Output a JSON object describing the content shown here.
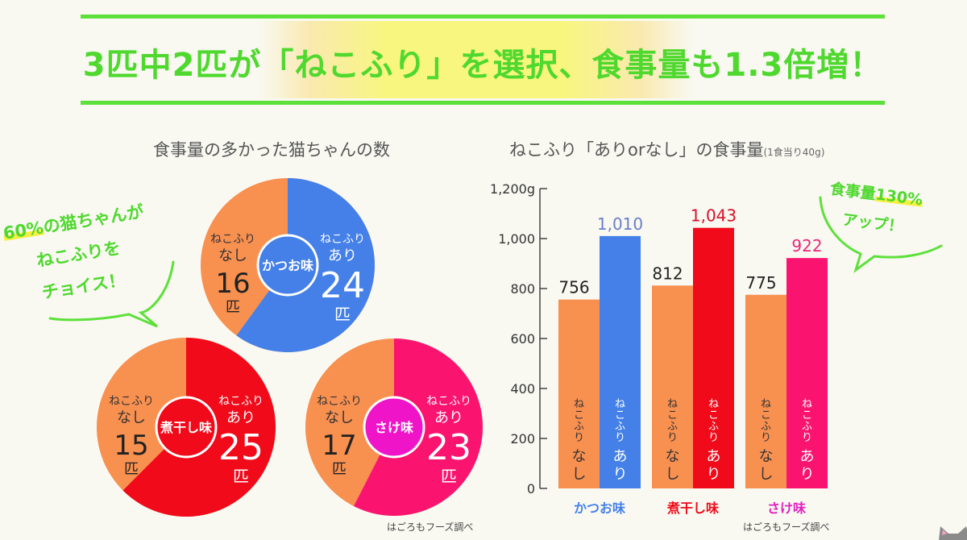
{
  "headline": {
    "text": "3匹中2匹が「ねこふり」を選択、食事量も1.3倍増！"
  },
  "pie_section": {
    "title": "食事量の多かった猫ちゃんの数",
    "source": "はごろもフーズ調べ",
    "callout": {
      "line1_highlight": "60%",
      "line1_rest": "の猫ちゃんが",
      "line2": "ねこふりを",
      "line3": "チョイス！"
    }
  },
  "bar_section": {
    "title": "ねこふり「ありorなし」の食事量",
    "title_note": "(1食当り40g)",
    "source": "はごろもフーズ調べ",
    "callout": {
      "line1_prefix": "食事量",
      "line1_highlight": "130%",
      "line2": "アップ！"
    }
  },
  "colors": {
    "accent_green": "#4fd82e",
    "without": "#f89050",
    "katsuo": "#4480e8",
    "niboshi": "#f00a1a",
    "sake": "#fa1470",
    "sake_center": "#f014c8"
  },
  "chart_data": [
    {
      "type": "pie",
      "title": "食事量の多かった猫ちゃんの数",
      "unit": "匹",
      "label_with": [
        "ねこふり",
        "あり"
      ],
      "label_without": [
        "ねこふり",
        "なし"
      ],
      "pies": [
        {
          "flavor": "かつお味",
          "with": 24,
          "without": 16,
          "color": "#4480e8",
          "center_color": "#4480e8"
        },
        {
          "flavor": "煮干し味",
          "with": 25,
          "without": 15,
          "color": "#f00a1a",
          "center_color": "#f00a1a"
        },
        {
          "flavor": "さけ味",
          "with": 23,
          "without": 17,
          "color": "#fa1470",
          "center_color": "#f014c8"
        }
      ]
    },
    {
      "type": "bar",
      "title": "ねこふり「ありorなし」の食事量",
      "subtitle": "(1食当り40g)",
      "categories": [
        "かつお味",
        "煮干し味",
        "さけ味"
      ],
      "category_colors": [
        "#4480e8",
        "#f00a1a",
        "#e020c0"
      ],
      "series": [
        {
          "name": "ねこふりなし",
          "bar_label": [
            "ねこふり",
            "なし"
          ],
          "values": [
            756,
            812,
            775
          ],
          "value_labels": [
            "756",
            "812",
            "775"
          ],
          "colors": [
            "#f89050",
            "#f89050",
            "#f89050"
          ]
        },
        {
          "name": "ねこふりあり",
          "bar_label": [
            "ねこふり",
            "あり"
          ],
          "values": [
            1010,
            1043,
            922
          ],
          "value_labels": [
            "1,010",
            "1,043",
            "922"
          ],
          "colors": [
            "#4480e8",
            "#f00a1a",
            "#fa1470"
          ],
          "label_colors": [
            "#6a7ec8",
            "#d8102a",
            "#e8287a"
          ]
        }
      ],
      "ylim": [
        0,
        1200
      ],
      "yticks": [
        0,
        200,
        400,
        600,
        800,
        1000,
        1200
      ],
      "ytick_labels": [
        "0",
        "200",
        "400",
        "600",
        "800",
        "1,000",
        "1,200g"
      ],
      "ylabel": "",
      "xlabel": "",
      "grid": false
    }
  ]
}
